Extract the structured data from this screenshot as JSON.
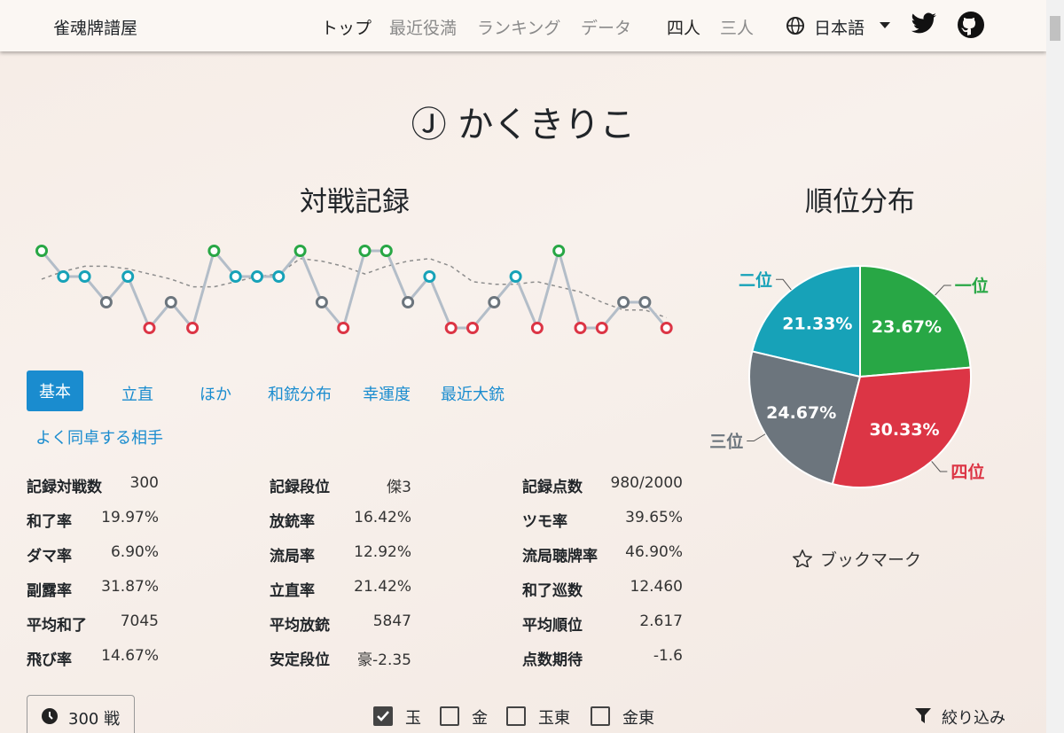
{
  "navbar": {
    "brand": "雀魂牌譜屋",
    "links": [
      "トップ",
      "最近役満",
      "ランキング",
      "データ"
    ],
    "modes": [
      "四人",
      "三人"
    ],
    "language": "日本語"
  },
  "player": {
    "name": "Ⓙ かくきりこ"
  },
  "record": {
    "title": "対戦記録",
    "chart": {
      "type": "line",
      "values": [
        1,
        2,
        2,
        3,
        2,
        4,
        3,
        4,
        1,
        2,
        2,
        2,
        1,
        3,
        4,
        1,
        1,
        3,
        2,
        4,
        4,
        3,
        2,
        4,
        1,
        4,
        4,
        3,
        3,
        4
      ],
      "average": [
        2.1,
        1.8,
        1.6,
        1.6,
        1.7,
        1.9,
        2.1,
        2.4,
        2.4,
        2.2,
        2.0,
        1.9,
        1.3,
        1.4,
        1.6,
        1.9,
        1.6,
        1.4,
        1.3,
        1.6,
        2.2,
        2.3,
        2.3,
        2.2,
        2.4,
        2.6,
        3.0,
        3.3,
        3.3,
        3.6
      ],
      "rank_colors": [
        "#28a745",
        "#17a2b8",
        "#6c757d",
        "#dc3545"
      ],
      "ylim": [
        1,
        4
      ]
    }
  },
  "distribution": {
    "title": "順位分布",
    "chart": {
      "type": "pie",
      "categories": [
        "一位",
        "二位",
        "三位",
        "四位"
      ],
      "values": [
        23.67,
        21.33,
        24.67,
        30.33
      ],
      "value_labels": [
        "23.67%",
        "21.33%",
        "24.67%",
        "30.33%"
      ],
      "colors": [
        "#28a745",
        "#17a2b8",
        "#6c757d",
        "#dc3545"
      ]
    }
  },
  "tabs": [
    {
      "label": "基本",
      "active": true
    },
    {
      "label": "立直",
      "active": false
    },
    {
      "label": "ほか",
      "active": false
    },
    {
      "label": "和銃分布",
      "active": false
    },
    {
      "label": "幸運度",
      "active": false
    },
    {
      "label": "最近大銃",
      "active": false
    },
    {
      "label": "よく同卓する相手",
      "active": false
    }
  ],
  "stats": [
    [
      [
        "記録対戦数",
        "300"
      ],
      [
        "和了率",
        "19.97%"
      ],
      [
        "ダマ率",
        "6.90%"
      ],
      [
        "副露率",
        "31.87%"
      ],
      [
        "平均和了",
        "7045"
      ],
      [
        "飛び率",
        "14.67%"
      ]
    ],
    [
      [
        "記録段位",
        "傑3"
      ],
      [
        "放銃率",
        "16.42%"
      ],
      [
        "流局率",
        "12.92%"
      ],
      [
        "立直率",
        "21.42%"
      ],
      [
        "平均放銃",
        "5847"
      ],
      [
        "安定段位",
        "豪-2.35"
      ]
    ],
    [
      [
        "記録点数",
        "980/2000"
      ],
      [
        "ツモ率",
        "39.65%"
      ],
      [
        "流局聴牌率",
        "46.90%"
      ],
      [
        "和了巡数",
        "12.460"
      ],
      [
        "平均順位",
        "2.617"
      ],
      [
        "点数期待",
        "-1.6"
      ]
    ]
  ],
  "bookmark": "ブックマーク",
  "footer": {
    "games": "300 戦",
    "filters": [
      {
        "label": "玉",
        "checked": true
      },
      {
        "label": "金",
        "checked": false
      },
      {
        "label": "玉東",
        "checked": false
      },
      {
        "label": "金東",
        "checked": false
      }
    ],
    "filter_button": "絞り込み"
  }
}
